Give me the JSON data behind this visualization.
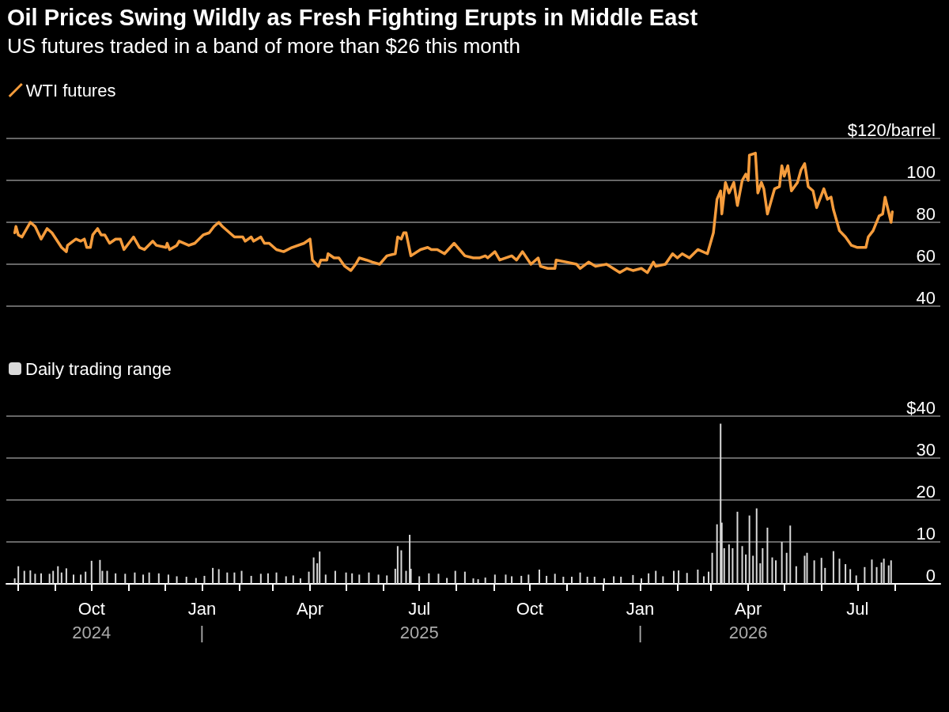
{
  "chart_data": [
    {
      "type": "line",
      "title": "Oil Prices Swing Wildly as Fresh Fighting Erupts in Middle East",
      "subtitle": "US futures traded in a band of more than $26 this month",
      "series": [
        {
          "name": "WTI futures",
          "color": "#f59c3c",
          "x": [
            "2024-07-29",
            "2024-07-30",
            "2024-08-01",
            "2024-08-04",
            "2024-08-11",
            "2024-08-15",
            "2024-08-20",
            "2024-08-25",
            "2024-08-29",
            "2024-09-06",
            "2024-09-10",
            "2024-09-11",
            "2024-09-18",
            "2024-09-22",
            "2024-09-25",
            "2024-09-27",
            "2024-09-30",
            "2024-10-02",
            "2024-10-06",
            "2024-10-09",
            "2024-10-12",
            "2024-10-16",
            "2024-10-21",
            "2024-10-25",
            "2024-10-28",
            "2024-11-05",
            "2024-11-10",
            "2024-11-14",
            "2024-11-21",
            "2024-11-24",
            "2024-12-02",
            "2024-12-03",
            "2024-12-05",
            "2024-12-11",
            "2024-12-13",
            "2024-12-21",
            "2024-12-26",
            "2025-01-02",
            "2025-01-07",
            "2025-01-11",
            "2025-01-15",
            "2025-01-18",
            "2025-01-28",
            "2025-02-04",
            "2025-02-06",
            "2025-02-11",
            "2025-02-13",
            "2025-02-19",
            "2025-02-22",
            "2025-02-26",
            "2025-03-04",
            "2025-03-10",
            "2025-03-17",
            "2025-03-27",
            "2025-04-01",
            "2025-04-03",
            "2025-04-08",
            "2025-04-10",
            "2025-04-15",
            "2025-04-16",
            "2025-04-21",
            "2025-04-25",
            "2025-04-30",
            "2025-05-05",
            "2025-05-09",
            "2025-05-12",
            "2025-05-18",
            "2025-05-23",
            "2025-05-29",
            "2025-06-04",
            "2025-06-11",
            "2025-06-13",
            "2025-06-16",
            "2025-06-18",
            "2025-06-20",
            "2025-06-24",
            "2025-07-02",
            "2025-07-08",
            "2025-07-11",
            "2025-07-16",
            "2025-07-22",
            "2025-07-30",
            "2025-08-08",
            "2025-08-15",
            "2025-08-20",
            "2025-08-25",
            "2025-08-27",
            "2025-09-02",
            "2025-09-06",
            "2025-09-16",
            "2025-09-20",
            "2025-09-25",
            "2025-10-02",
            "2025-10-08",
            "2025-10-10",
            "2025-10-16",
            "2025-10-22",
            "2025-10-23",
            "2025-11-01",
            "2025-11-09",
            "2025-11-12",
            "2025-11-19",
            "2025-11-25",
            "2025-12-04",
            "2025-12-15",
            "2025-12-21",
            "2025-12-26",
            "2026-01-02",
            "2026-01-07",
            "2026-01-12",
            "2026-01-14",
            "2026-01-22",
            "2026-01-28",
            "2026-02-01",
            "2026-02-05",
            "2026-02-11",
            "2026-02-18",
            "2026-02-26",
            "2026-03-03",
            "2026-03-06",
            "2026-03-09",
            "2026-03-10",
            "2026-03-13",
            "2026-03-16",
            "2026-03-20",
            "2026-03-23",
            "2026-03-27",
            "2026-03-30",
            "2026-04-01",
            "2026-04-02",
            "2026-04-07",
            "2026-04-09",
            "2026-04-12",
            "2026-04-14",
            "2026-04-17",
            "2026-04-23",
            "2026-04-27",
            "2026-04-29",
            "2026-05-01",
            "2026-05-04",
            "2026-05-07",
            "2026-05-12",
            "2026-05-15",
            "2026-05-18",
            "2026-05-21",
            "2026-05-25",
            "2026-05-28",
            "2026-06-03",
            "2026-06-06",
            "2026-06-09",
            "2026-06-11",
            "2026-06-16",
            "2026-06-21",
            "2026-06-26",
            "2026-07-01",
            "2026-07-08",
            "2026-07-10",
            "2026-07-14",
            "2026-07-19",
            "2026-07-22",
            "2026-07-24",
            "2026-07-29",
            "2026-07-30"
          ],
          "values": [
            75,
            78,
            74,
            73,
            80,
            78,
            72,
            77,
            75,
            68,
            66,
            69,
            72,
            71,
            72,
            68,
            68,
            74,
            77,
            74,
            74,
            70,
            72,
            72,
            67,
            73,
            68,
            67,
            71,
            69,
            68,
            70,
            67,
            69,
            71,
            69,
            70,
            74,
            75,
            78,
            80,
            78,
            73,
            73,
            71,
            73,
            71,
            73,
            70,
            70,
            67,
            66,
            68,
            70,
            72,
            62,
            59,
            62,
            62,
            65,
            63,
            63,
            59,
            57,
            60,
            63,
            62,
            61,
            60,
            64,
            65,
            73,
            72,
            75,
            75,
            64,
            67,
            68,
            67,
            67,
            65,
            70,
            64,
            63,
            63,
            64,
            63,
            66,
            62,
            64,
            62,
            66,
            60,
            63,
            59,
            58,
            58,
            62,
            61,
            60,
            58,
            61,
            59,
            60,
            56,
            58,
            57,
            58,
            56,
            61,
            59,
            60,
            65,
            63,
            65,
            63,
            67,
            65,
            75,
            91,
            95,
            84,
            99,
            94,
            99,
            88,
            100,
            103,
            100,
            112,
            113,
            94,
            99,
            96,
            84,
            96,
            97,
            107,
            102,
            107,
            95,
            99,
            105,
            108,
            97,
            95,
            87,
            96,
            91,
            92,
            86,
            76,
            73,
            69,
            68,
            68,
            73,
            76,
            83,
            84,
            92,
            80,
            85
          ]
        }
      ],
      "ylim": [
        40,
        120
      ],
      "yticks": [
        {
          "value": 120,
          "label": "$120/barrel"
        },
        100,
        80,
        60,
        40
      ],
      "xlim": [
        "2024-07-22",
        "2026-09-08"
      ],
      "tick_labels": "y",
      "grid": "y",
      "legend": "top left",
      "marker": "none",
      "line_style": "solid"
    },
    {
      "type": "bar",
      "series": [
        {
          "name": "Daily trading range",
          "color": "#d9d9d9",
          "x": [
            "2024-07-29",
            "2024-08-01",
            "2024-08-06",
            "2024-08-11",
            "2024-08-15",
            "2024-08-20",
            "2024-08-27",
            "2024-08-30",
            "2024-09-03",
            "2024-09-06",
            "2024-09-10",
            "2024-09-16",
            "2024-09-22",
            "2024-09-26",
            "2024-10-01",
            "2024-10-08",
            "2024-10-10",
            "2024-10-14",
            "2024-10-21",
            "2024-10-29",
            "2024-11-06",
            "2024-11-13",
            "2024-11-18",
            "2024-11-26",
            "2024-12-04",
            "2024-12-11",
            "2024-12-19",
            "2024-12-27",
            "2025-01-03",
            "2025-01-10",
            "2025-01-15",
            "2025-01-22",
            "2025-01-28",
            "2025-02-03",
            "2025-02-11",
            "2025-02-19",
            "2025-02-25",
            "2025-03-04",
            "2025-03-12",
            "2025-03-18",
            "2025-03-24",
            "2025-03-31",
            "2025-04-04",
            "2025-04-07",
            "2025-04-09",
            "2025-04-14",
            "2025-04-22",
            "2025-05-01",
            "2025-05-06",
            "2025-05-12",
            "2025-05-20",
            "2025-05-28",
            "2025-06-04",
            "2025-06-11",
            "2025-06-13",
            "2025-06-16",
            "2025-06-20",
            "2025-06-23",
            "2025-06-24",
            "2025-07-01",
            "2025-07-09",
            "2025-07-17",
            "2025-07-24",
            "2025-07-31",
            "2025-08-08",
            "2025-08-15",
            "2025-08-19",
            "2025-08-25",
            "2025-09-02",
            "2025-09-11",
            "2025-09-16",
            "2025-09-24",
            "2025-09-30",
            "2025-10-09",
            "2025-10-15",
            "2025-10-22",
            "2025-10-29",
            "2025-11-05",
            "2025-11-12",
            "2025-11-18",
            "2025-11-24",
            "2025-12-02",
            "2025-12-10",
            "2025-12-16",
            "2025-12-26",
            "2026-01-02",
            "2026-01-08",
            "2026-01-14",
            "2026-01-20",
            "2026-01-29",
            "2026-02-02",
            "2026-02-09",
            "2026-02-18",
            "2026-02-23",
            "2026-02-27",
            "2026-03-02",
            "2026-03-06",
            "2026-03-09",
            "2026-03-10",
            "2026-03-12",
            "2026-03-16",
            "2026-03-19",
            "2026-03-23",
            "2026-03-27",
            "2026-03-30",
            "2026-04-02",
            "2026-04-05",
            "2026-04-08",
            "2026-04-11",
            "2026-04-13",
            "2026-04-17",
            "2026-04-21",
            "2026-04-24",
            "2026-04-29",
            "2026-05-03",
            "2026-05-06",
            "2026-05-11",
            "2026-05-18",
            "2026-05-20",
            "2026-05-26",
            "2026-06-01",
            "2026-06-04",
            "2026-06-11",
            "2026-06-16",
            "2026-06-21",
            "2026-06-25",
            "2026-06-30",
            "2026-07-07",
            "2026-07-13",
            "2026-07-17",
            "2026-07-21",
            "2026-07-23",
            "2026-07-27",
            "2026-07-29"
          ],
          "values": [
            1.3,
            4.2,
            3.1,
            3.2,
            2.4,
            2.5,
            2.4,
            3.1,
            4.2,
            2.7,
            3.7,
            2.2,
            2.2,
            2.9,
            5.5,
            5.7,
            3.1,
            3.1,
            2.5,
            2.4,
            2.7,
            2.2,
            2.7,
            2.5,
            2.2,
            1.8,
            1.7,
            1.4,
            1.9,
            3.8,
            3.5,
            2.7,
            2.7,
            3.1,
            1.9,
            2.4,
            2.5,
            2.7,
            1.8,
            2,
            1.3,
            2.9,
            6.3,
            4.9,
            7.7,
            2.2,
            3.1,
            2.7,
            2.5,
            2.2,
            2.7,
            2.2,
            2,
            3.6,
            9,
            8,
            3.1,
            11.7,
            3.6,
            1.8,
            2.5,
            2.4,
            1.4,
            3.1,
            2.9,
            1.3,
            1.1,
            1.5,
            2.2,
            2.2,
            1.8,
            1.9,
            2.2,
            3.4,
            1.9,
            2.4,
            1.7,
            1.7,
            2.7,
            1.7,
            1.7,
            1.3,
            1.8,
            1.7,
            2.1,
            1.3,
            2.5,
            3.1,
            1.8,
            3.1,
            3.2,
            2.6,
            3.4,
            1.8,
            2.9,
            7.4,
            14.2,
            38.2,
            14.6,
            8.5,
            9.4,
            8.5,
            17.2,
            9,
            7,
            16.3,
            6.7,
            18,
            4.9,
            8.5,
            13.4,
            6.3,
            5.6,
            10,
            7.4,
            13.9,
            4.2,
            6.7,
            7.4,
            5.6,
            6.2,
            3.8,
            7.8,
            6,
            4.7,
            3.5,
            2,
            4,
            5.8,
            4,
            5.1,
            6,
            4.4,
            5.6
          ]
        }
      ],
      "ylim": [
        0,
        40
      ],
      "yticks": [
        {
          "value": 40,
          "label": "$40"
        },
        30,
        20,
        10,
        0
      ],
      "xlim": [
        "2024-07-22",
        "2026-09-08"
      ],
      "xticks": [
        {
          "value": "2024-08",
          "label": null
        },
        {
          "value": "2024-09",
          "label": null
        },
        {
          "value": "2024-10",
          "label": "Oct\n2024"
        },
        {
          "value": "2024-11",
          "label": null
        },
        {
          "value": "2024-12",
          "label": null
        },
        {
          "value": "2025-01",
          "label": "Jan\n|"
        },
        {
          "value": "2025-02",
          "label": null
        },
        {
          "value": "2025-03",
          "label": null
        },
        {
          "value": "2025-04",
          "label": "Apr"
        },
        {
          "value": "2025-05",
          "label": null
        },
        {
          "value": "2025-06",
          "label": null
        },
        {
          "value": "2025-07",
          "label": "Jul\n2025"
        },
        {
          "value": "2025-08",
          "label": null
        },
        {
          "value": "2025-09",
          "label": null
        },
        {
          "value": "2025-10",
          "label": "Oct"
        },
        {
          "value": "2025-11",
          "label": null
        },
        {
          "value": "2025-12",
          "label": null
        },
        {
          "value": "2026-01",
          "label": "Jan\n|"
        },
        {
          "value": "2026-02",
          "label": null
        },
        {
          "value": "2026-03",
          "label": null
        },
        {
          "value": "2026-04",
          "label": "Apr\n2026"
        },
        {
          "value": "2026-05",
          "label": null
        },
        {
          "value": "2026-06",
          "label": null
        },
        {
          "value": "2026-07",
          "label": "Jul"
        },
        {
          "value": "2026-08",
          "label": null
        }
      ],
      "grid": "y",
      "legend": "top left"
    }
  ]
}
